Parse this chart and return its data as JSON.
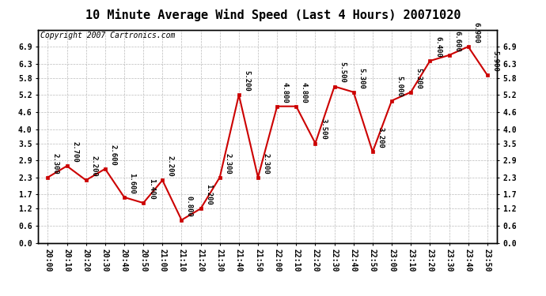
{
  "title": "10 Minute Average Wind Speed (Last 4 Hours) 20071020",
  "copyright": "Copyright 2007 Cartronics.com",
  "times": [
    "20:00",
    "20:10",
    "20:20",
    "20:30",
    "20:40",
    "20:50",
    "21:00",
    "21:10",
    "21:20",
    "21:30",
    "21:40",
    "21:50",
    "22:00",
    "22:10",
    "22:20",
    "22:30",
    "22:40",
    "22:50",
    "23:00",
    "23:10",
    "23:20",
    "23:30",
    "23:40",
    "23:50"
  ],
  "values": [
    2.3,
    2.7,
    2.2,
    2.6,
    1.6,
    1.4,
    2.2,
    0.8,
    1.2,
    2.3,
    5.2,
    2.3,
    4.8,
    4.8,
    3.5,
    5.5,
    5.3,
    3.2,
    5.0,
    5.3,
    6.4,
    6.6,
    6.9,
    5.9
  ],
  "line_color": "#cc0000",
  "marker_color": "#cc0000",
  "bg_color": "#ffffff",
  "grid_color": "#bbbbbb",
  "ylim": [
    0.0,
    7.5
  ],
  "yticks": [
    0.0,
    0.6,
    1.2,
    1.7,
    2.3,
    2.9,
    3.5,
    4.0,
    4.6,
    5.2,
    5.8,
    6.3,
    6.9
  ],
  "title_fontsize": 11,
  "tick_fontsize": 7,
  "annotation_fontsize": 6.5,
  "copyright_fontsize": 7
}
